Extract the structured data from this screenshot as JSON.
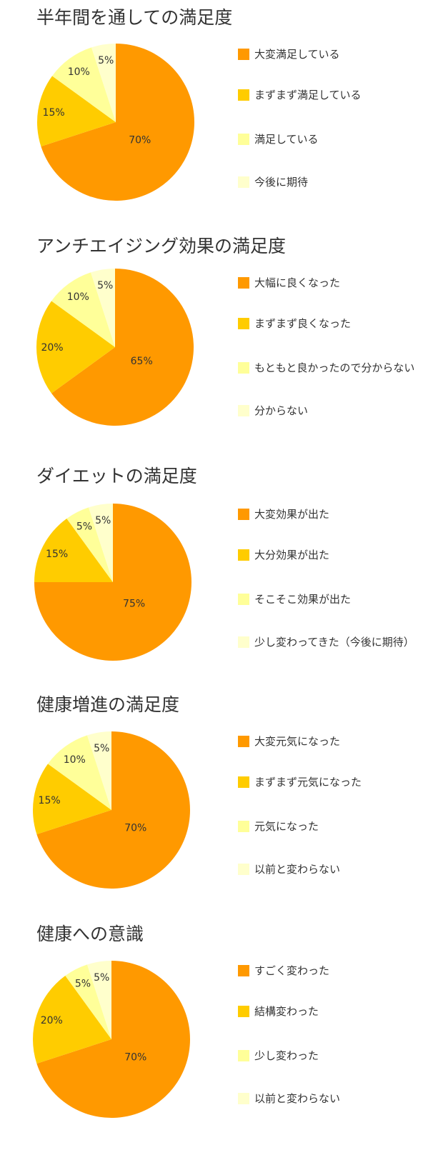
{
  "colors": [
    "#ff9900",
    "#ffcc00",
    "#ffff99",
    "#ffffcc"
  ],
  "chart_data": [
    {
      "type": "pie",
      "title": "半年間を通しての満足度",
      "categories": [
        "大変満足している",
        "まずまず満足している",
        "満足している",
        "今後に期待"
      ],
      "values": [
        70,
        15,
        10,
        5
      ],
      "value_labels": [
        "70%",
        "15%",
        "10%",
        "5%"
      ],
      "legend_position": "right"
    },
    {
      "type": "pie",
      "title": "アンチエイジング効果の満足度",
      "categories": [
        "大幅に良くなった",
        "まずまず良くなった",
        "もともと良かったので分からない",
        "分からない"
      ],
      "values": [
        65,
        20,
        10,
        5
      ],
      "value_labels": [
        "65%",
        "20%",
        "10%",
        "5%"
      ],
      "legend_position": "right"
    },
    {
      "type": "pie",
      "title": "ダイエットの満足度",
      "categories": [
        "大変効果が出た",
        "大分効果が出た",
        "そこそこ効果が出た",
        "少し変わってきた（今後に期待）"
      ],
      "values": [
        75,
        15,
        5,
        5
      ],
      "value_labels": [
        "75%",
        "15%",
        "5%",
        "5%"
      ],
      "legend_position": "right"
    },
    {
      "type": "pie",
      "title": "健康増進の満足度",
      "categories": [
        "大変元気になった",
        "まずまず元気になった",
        "元気になった",
        "以前と変わらない"
      ],
      "values": [
        70,
        15,
        10,
        5
      ],
      "value_labels": [
        "70%",
        "15%",
        "10%",
        "5%"
      ],
      "legend_position": "right"
    },
    {
      "type": "pie",
      "title": "健康への意識",
      "categories": [
        "すごく変わった",
        "結構変わった",
        "少し変わった",
        "以前と変わらない"
      ],
      "values": [
        70,
        20,
        5,
        5
      ],
      "value_labels": [
        "70%",
        "20%",
        "5%",
        "5%"
      ],
      "legend_position": "right"
    }
  ]
}
